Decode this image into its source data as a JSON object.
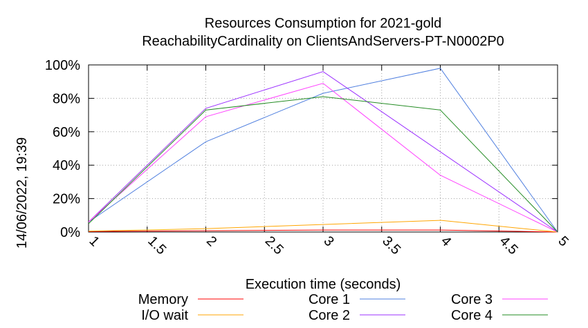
{
  "chart_data": {
    "type": "line",
    "title": "Resources Consumption for 2021-gold",
    "subtitle": "ReachabilityCardinality on ClientsAndServers-PT-N0002P0",
    "xlabel": "Execution time (seconds)",
    "ylabel": "",
    "side_label": "14/06/2022, 19:39",
    "xlim": [
      1,
      5
    ],
    "ylim": [
      0,
      100
    ],
    "x_ticks": [
      "1",
      "1.5",
      "2",
      "2.5",
      "3",
      "3.5",
      "4",
      "4.5",
      "5"
    ],
    "y_ticks": [
      "0%",
      "20%",
      "40%",
      "60%",
      "80%",
      "100%"
    ],
    "grid": true,
    "legend_position": "bottom",
    "x": [
      1,
      2,
      3,
      4,
      5
    ],
    "series": [
      {
        "name": "Memory",
        "color": "#ff0000",
        "values": [
          0.3,
          0.8,
          1.2,
          1.2,
          0
        ]
      },
      {
        "name": "I/O wait",
        "color": "#ffa500",
        "values": [
          0.5,
          2,
          4.5,
          7,
          0
        ]
      },
      {
        "name": "Core 1",
        "color": "#4f7fdf",
        "values": [
          6,
          54,
          83,
          98,
          0
        ]
      },
      {
        "name": "Core 2",
        "color": "#9b30ff",
        "values": [
          6,
          74,
          96,
          48,
          0
        ]
      },
      {
        "name": "Core 3",
        "color": "#ff40ff",
        "values": [
          6,
          69,
          89,
          34,
          0
        ]
      },
      {
        "name": "Core 4",
        "color": "#228b22",
        "values": [
          5,
          73,
          81,
          73,
          0
        ]
      }
    ]
  }
}
